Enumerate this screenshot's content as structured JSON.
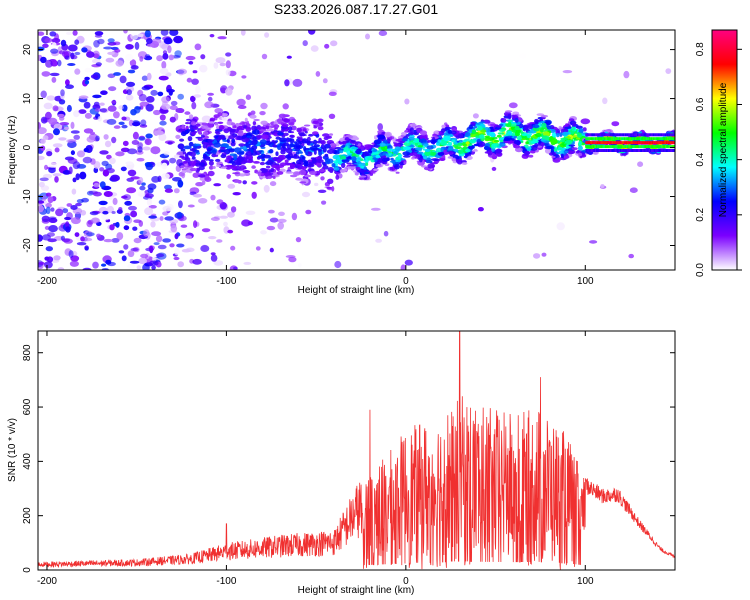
{
  "title": "S233.2026.087.17.27.G01",
  "chart_data": [
    {
      "type": "heatmap",
      "id": "spectrogram",
      "xlabel": "Height of straight line (km)",
      "ylabel": "Frequency (Hz)",
      "xlim": [
        -205,
        150
      ],
      "ylim": [
        -25,
        24
      ],
      "x_ticks": [
        -200,
        -100,
        0,
        100
      ],
      "y_ticks": [
        -20,
        -10,
        0,
        10,
        20
      ],
      "colorbar": {
        "label": "Normalized spectral amplitude",
        "range": [
          0,
          0.87
        ],
        "ticks": [
          0,
          0.2,
          0.4,
          0.6,
          0.8
        ],
        "tick_labels": [
          "0.0",
          "0.2",
          "0.4",
          "0.6",
          "0.8"
        ],
        "colors": [
          "#ffffff",
          "#7b00ff",
          "#0000ff",
          "#00ffff",
          "#00ff00",
          "#ffff00",
          "#ff0000",
          "#ff0080"
        ]
      },
      "ridge": [
        {
          "x": -120,
          "f": 0
        },
        {
          "x": -60,
          "f": 0
        },
        {
          "x": -40,
          "f": -2
        },
        {
          "x": -20,
          "f": -2
        },
        {
          "x": 0,
          "f": 0
        },
        {
          "x": 20,
          "f": 0
        },
        {
          "x": 40,
          "f": 2
        },
        {
          "x": 60,
          "f": 3
        },
        {
          "x": 80,
          "f": 2
        },
        {
          "x": 100,
          "f": 1
        },
        {
          "x": 150,
          "f": 1
        }
      ]
    },
    {
      "type": "line",
      "id": "snr",
      "xlabel": "Height of straight line (km)",
      "ylabel": "SNR (10 * v/v)",
      "xlim": [
        -205,
        150
      ],
      "ylim": [
        0,
        880
      ],
      "x_ticks": [
        -200,
        -100,
        0,
        100
      ],
      "y_ticks": [
        0,
        200,
        400,
        600,
        800
      ],
      "color": "#f03030",
      "envelope": [
        {
          "x": -205,
          "y": 30
        },
        {
          "x": -150,
          "y": 40
        },
        {
          "x": -120,
          "y": 60
        },
        {
          "x": -100,
          "y": 100
        },
        {
          "x": -70,
          "y": 130
        },
        {
          "x": -40,
          "y": 150
        },
        {
          "x": -25,
          "y": 350
        },
        {
          "x": -10,
          "y": 430
        },
        {
          "x": 0,
          "y": 520
        },
        {
          "x": 15,
          "y": 560
        },
        {
          "x": 30,
          "y": 650
        },
        {
          "x": 45,
          "y": 600
        },
        {
          "x": 60,
          "y": 580
        },
        {
          "x": 75,
          "y": 600
        },
        {
          "x": 90,
          "y": 500
        },
        {
          "x": 100,
          "y": 330
        },
        {
          "x": 110,
          "y": 285
        },
        {
          "x": 118,
          "y": 295
        },
        {
          "x": 130,
          "y": 180
        },
        {
          "x": 142,
          "y": 80
        },
        {
          "x": 150,
          "y": 50
        }
      ],
      "peaks": [
        {
          "x": -100,
          "y": 170
        },
        {
          "x": -20,
          "y": 590
        },
        {
          "x": 30,
          "y": 880
        },
        {
          "x": 75,
          "y": 710
        }
      ]
    }
  ]
}
